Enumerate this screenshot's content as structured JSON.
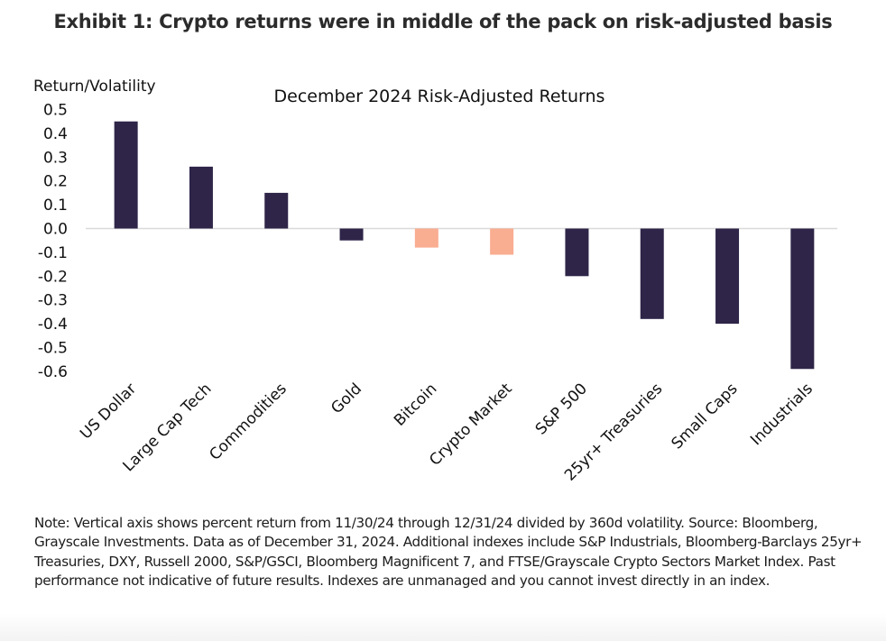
{
  "exhibit_title": "Exhibit 1: Crypto returns were in middle of the pack on risk-adjusted basis",
  "note": "Note: Vertical axis shows percent return from 11/30/24 through 12/31/24 divided by 360d volatility. Source: Bloomberg, Grayscale Investments. Data as of December 31, 2024. Additional indexes include S&P Industrials, Bloomberg-Barclays 25yr+ Treasuries, DXY, Russell 2000, S&P/GSCI, Bloomberg Magnificent 7, and FTSE/Grayscale Crypto Sectors Market Index. Past performance not indicative of future results. Indexes are unmanaged and you cannot invest directly in an index.",
  "colors": {
    "primary_bar": "#2E2548",
    "crypto_bar": "#F9AD91",
    "zero_line": "#d9d9d9"
  },
  "chart_data": {
    "type": "bar",
    "title": "December 2024 Risk-Adjusted Returns",
    "xlabel": "",
    "ylabel": "Return/Volatility",
    "ylim": [
      -0.6,
      0.5
    ],
    "yticks": [
      "0.5",
      "0.4",
      "0.3",
      "0.2",
      "0.1",
      "0.0",
      "-0.1",
      "-0.2",
      "-0.3",
      "-0.4",
      "-0.5",
      "-0.6"
    ],
    "ytick_values": [
      0.5,
      0.4,
      0.3,
      0.2,
      0.1,
      0.0,
      -0.1,
      -0.2,
      -0.3,
      -0.4,
      -0.5,
      -0.6
    ],
    "grid": false,
    "legend": "none",
    "categories": [
      "US Dollar",
      "Large Cap Tech",
      "Commodities",
      "Gold",
      "Bitcoin",
      "Crypto Market",
      "S&P 500",
      "25yr+ Treasuries",
      "Small Caps",
      "Industrials"
    ],
    "values": [
      0.45,
      0.26,
      0.15,
      -0.05,
      -0.08,
      -0.11,
      -0.2,
      -0.38,
      -0.4,
      -0.59
    ],
    "highlight": [
      false,
      false,
      false,
      false,
      true,
      true,
      false,
      false,
      false,
      false
    ]
  }
}
